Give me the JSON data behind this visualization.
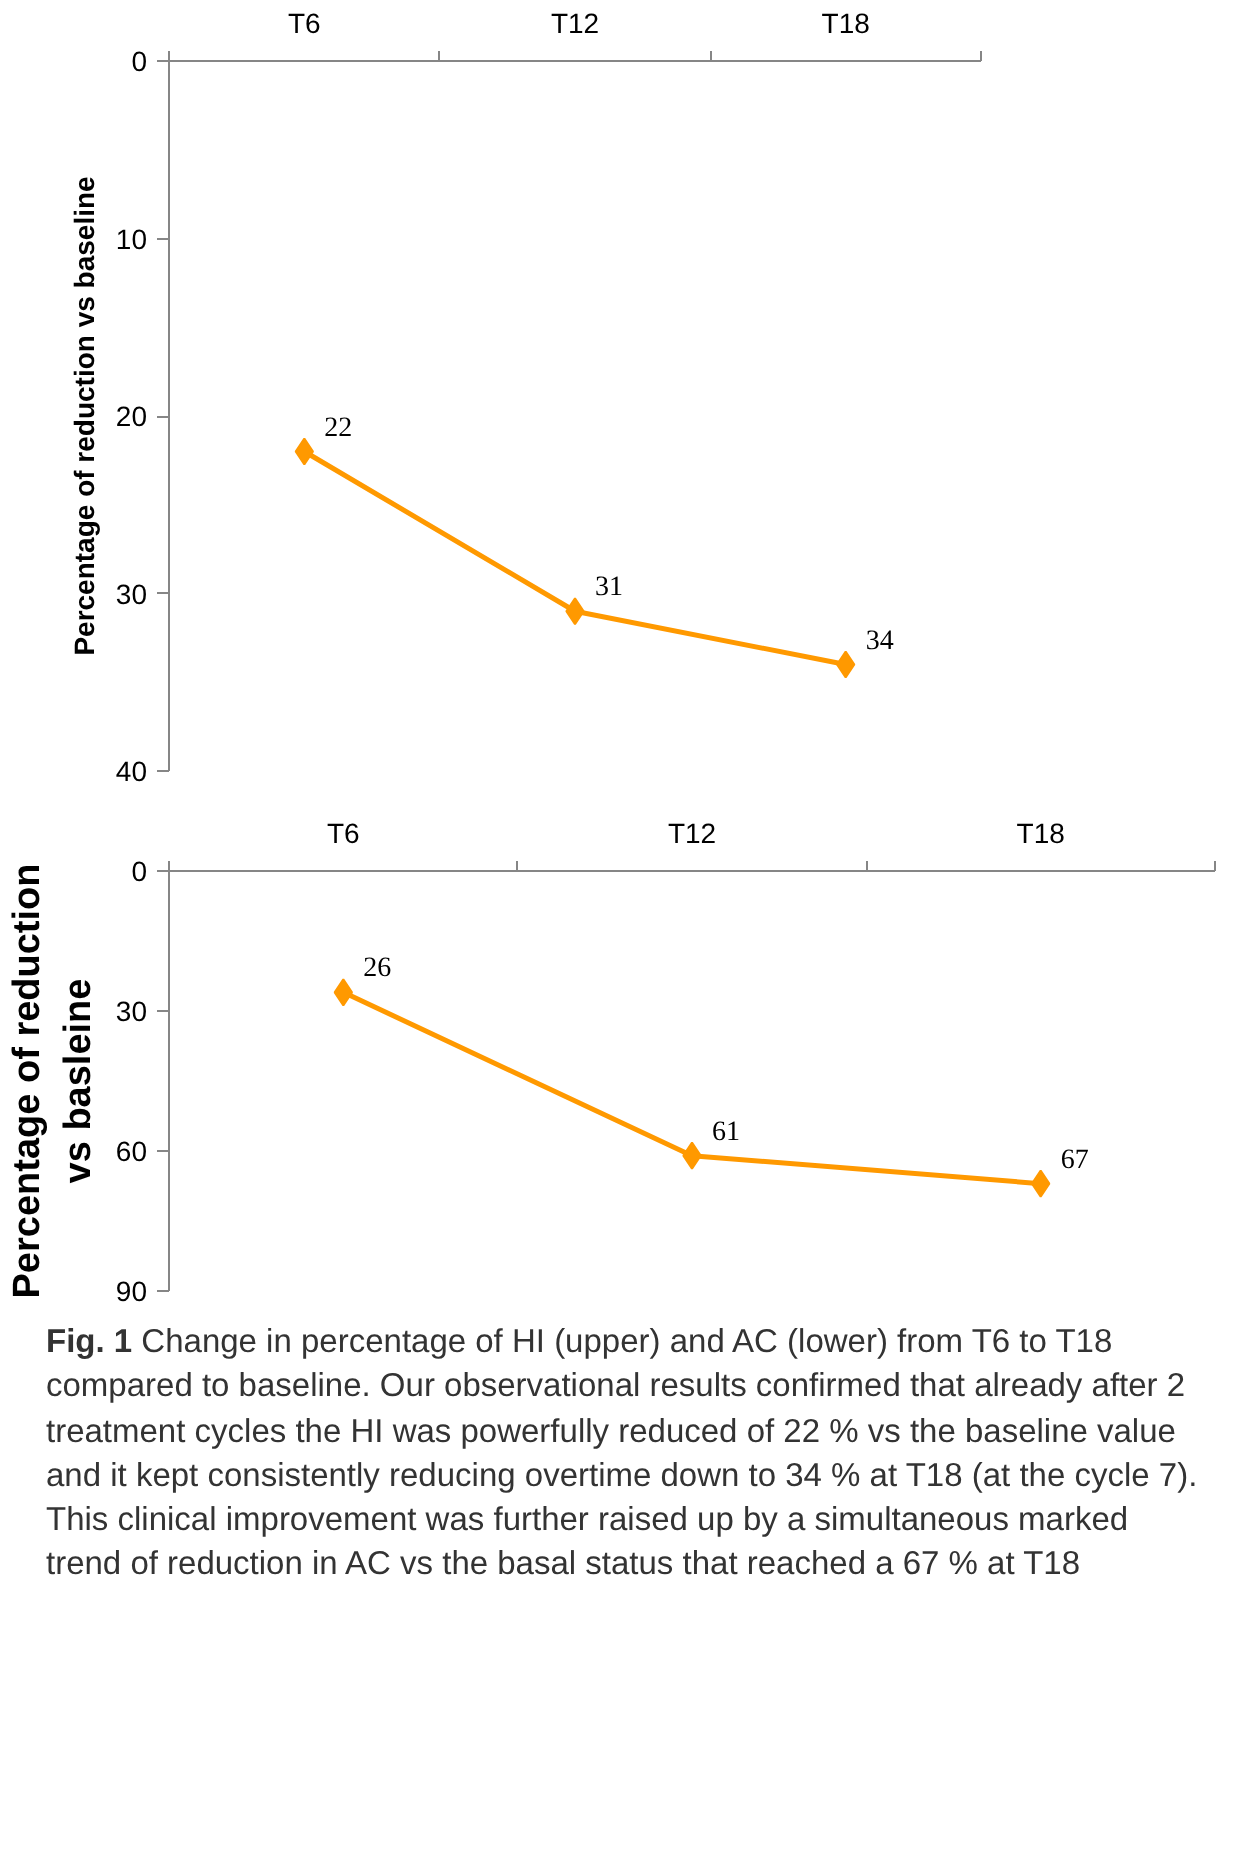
{
  "chart_data": [
    {
      "type": "line",
      "categories": [
        "T6",
        "T12",
        "T18"
      ],
      "ylabel": "Percentage of reduction vs baseline",
      "ylim": [
        40,
        0
      ],
      "yticks": [
        0,
        10,
        20,
        30,
        40
      ],
      "marker": "diamond",
      "data_labels": true,
      "series": [
        {
          "color": "#ff9900",
          "values": [
            22,
            31,
            34
          ]
        }
      ]
    },
    {
      "type": "line",
      "categories": [
        "T6",
        "T12",
        "T18"
      ],
      "ylabel": "Percentage of reduction vs basleine",
      "ylim": [
        90,
        0
      ],
      "yticks": [
        0,
        30,
        60,
        90
      ],
      "marker": "diamond",
      "data_labels": true,
      "series": [
        {
          "color": "#ff9900",
          "values": [
            26,
            61,
            67
          ]
        }
      ],
      "annotations": [
        "Fig. 1 Change in percentage of HI (upper) and AC (lower) from T6 to T18 compared to baseline. Our observational results confirmed that already after 2 treatment cycles the HI was powerfully reduced of 22 % vs the baseline value and it kept consistently reducing overtime down to 34 % at T18 (at the cycle 7). This clinical improvement was further raised up by a simultaneous marked trend of reduction in AC vs the basal status that reached a 67 % at T18"
      ]
    }
  ]
}
